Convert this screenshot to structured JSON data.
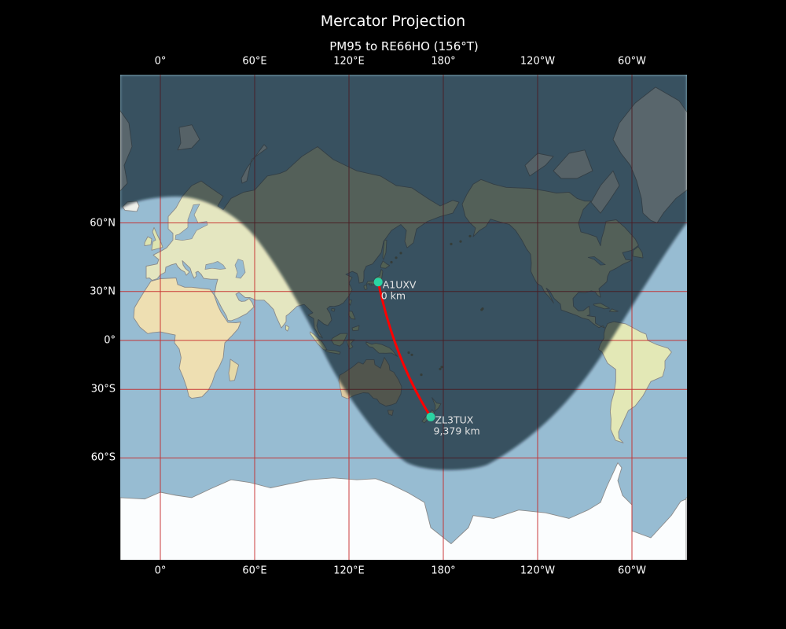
{
  "figure": {
    "title": "Mercator Projection",
    "subtitle": "PM95 to RE66HO (156°T)"
  },
  "route": {
    "from_grid": "PM95",
    "to_grid": "RE66HO",
    "bearing": "156°T",
    "total_distance_label": "9,379 km"
  },
  "axis": {
    "top_labels": [
      "0°",
      "60°E",
      "120°E",
      "180°",
      "120°W",
      "60°W"
    ],
    "bottom_labels": [
      "0°",
      "60°E",
      "120°E",
      "180°",
      "120°W",
      "60°W"
    ],
    "left_labels": [
      "60°N",
      "30°N",
      "0°",
      "30°S",
      "60°S"
    ],
    "lon_ticks_deg": [
      0,
      60,
      120,
      180,
      240,
      300
    ],
    "lat_ticks_deg": [
      60,
      30,
      0,
      -30,
      -60
    ]
  },
  "stations": [
    {
      "callsign": "A1UXV",
      "distance": "0 km",
      "lon": 138.6,
      "lat": 35.1
    },
    {
      "callsign": "ZL3TUX",
      "distance": "9,379 km",
      "lon": 172.0,
      "lat": -44.0
    }
  ],
  "colors": {
    "background": "#000000",
    "axis_text": "#ffffff",
    "grid_line": "#c62828",
    "path_line": "#ff0000",
    "marker": "#2bd3a2",
    "station_label": "#e3e3e3",
    "ocean_day": "#97bcd2",
    "night_shade": "rgba(5,13,28,0.63)",
    "coastline": "#8a8a8a"
  }
}
